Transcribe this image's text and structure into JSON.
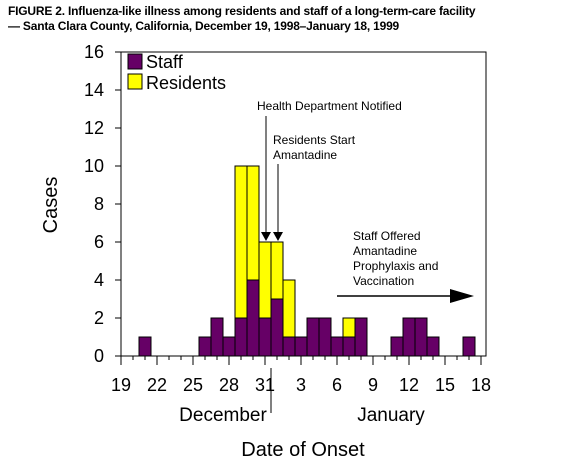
{
  "chart_data": {
    "type": "bar",
    "stacked": true,
    "title": "FIGURE 2. Influenza-like illness among residents and staff of a long-term-care facility",
    "subtitle": "— Santa Clara County, California, December 19, 1998–January 18, 1999",
    "xlabel": "Date of Onset",
    "ylabel": "Cases",
    "ylim": [
      0,
      16
    ],
    "yticks": [
      "0",
      "2",
      "4",
      "6",
      "8",
      "10",
      "12",
      "14",
      "16"
    ],
    "xticks": [
      {
        "label": "19",
        "day": 0
      },
      {
        "label": "22",
        "day": 3
      },
      {
        "label": "25",
        "day": 6
      },
      {
        "label": "28",
        "day": 9
      },
      {
        "label": "31",
        "day": 12
      },
      {
        "label": "3",
        "day": 15
      },
      {
        "label": "6",
        "day": 18
      },
      {
        "label": "9",
        "day": 21
      },
      {
        "label": "12",
        "day": 24
      },
      {
        "label": "15",
        "day": 27
      },
      {
        "label": "18",
        "day": 30
      }
    ],
    "month_labels": [
      {
        "label": "December",
        "day": 8.5
      },
      {
        "label": "January",
        "day": 22.5
      }
    ],
    "month_divider_day": 12.5,
    "x": [
      "Dec 19",
      "Dec 20",
      "Dec 21",
      "Dec 22",
      "Dec 23",
      "Dec 24",
      "Dec 25",
      "Dec 26",
      "Dec 27",
      "Dec 28",
      "Dec 29",
      "Dec 30",
      "Dec 31",
      "Jan 1",
      "Jan 2",
      "Jan 3",
      "Jan 4",
      "Jan 5",
      "Jan 6",
      "Jan 7",
      "Jan 8",
      "Jan 9",
      "Jan 10",
      "Jan 11",
      "Jan 12",
      "Jan 13",
      "Jan 14",
      "Jan 15",
      "Jan 16",
      "Jan 17",
      "Jan 18"
    ],
    "series": [
      {
        "name": "Staff",
        "color": "#660066",
        "values": [
          0,
          0,
          1,
          0,
          0,
          0,
          0,
          1,
          2,
          1,
          2,
          4,
          2,
          3,
          1,
          1,
          2,
          2,
          1,
          1,
          2,
          0,
          0,
          1,
          2,
          2,
          1,
          0,
          0,
          1,
          0
        ]
      },
      {
        "name": "Residents",
        "color": "#ffff00",
        "values": [
          0,
          0,
          0,
          0,
          0,
          0,
          0,
          0,
          0,
          0,
          8,
          6,
          4,
          3,
          3,
          0,
          0,
          0,
          0,
          1,
          0,
          0,
          0,
          0,
          0,
          0,
          0,
          0,
          0,
          0,
          0
        ]
      }
    ],
    "legend": "top-left",
    "annotations": [
      {
        "lines": [
          "Health Department Notified"
        ],
        "arrow_day": 12
      },
      {
        "lines": [
          "Residents Start",
          "Amantadine"
        ],
        "arrow_day": 13
      },
      {
        "lines": [
          "Staff Offered",
          "Amantadine",
          "Prophylaxis and",
          "Vaccination"
        ]
      }
    ]
  }
}
